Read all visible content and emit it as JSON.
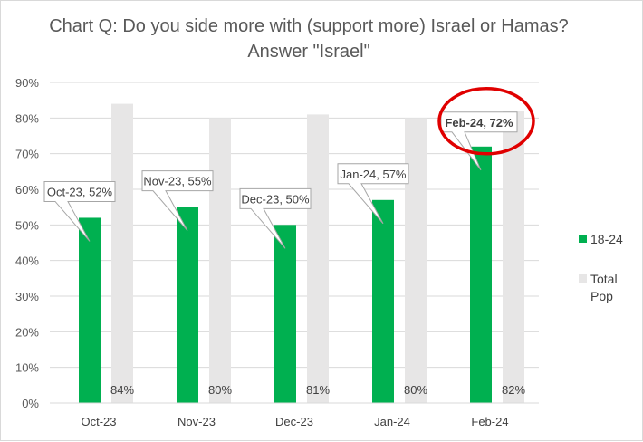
{
  "chart_data": {
    "type": "bar",
    "title": "Chart Q: Do you side more with (support more) Israel or Hamas? Answer \"Israel\"",
    "categories": [
      "Oct-23",
      "Nov-23",
      "Dec-23",
      "Jan-24",
      "Feb-24"
    ],
    "series": [
      {
        "name": "18-24",
        "values": [
          52,
          55,
          50,
          57,
          72
        ],
        "color": "#00b050"
      },
      {
        "name": "Total Pop",
        "values": [
          84,
          80,
          81,
          80,
          82
        ],
        "color": "#e7e6e6"
      }
    ],
    "y_ticks": [
      "0%",
      "10%",
      "20%",
      "30%",
      "40%",
      "50%",
      "60%",
      "70%",
      "80%",
      "90%"
    ],
    "ylim": [
      0,
      90
    ],
    "grid": true,
    "legend_position": "right",
    "callouts": [
      "Oct-23, 52%",
      "Nov-23, 55%",
      "Dec-23, 50%",
      "Jan-24, 57%",
      "Feb-24, 72%"
    ],
    "total_labels": [
      "84%",
      "80%",
      "81%",
      "80%",
      "82%"
    ],
    "highlight": {
      "category": "Feb-24",
      "color": "#e00000"
    }
  }
}
